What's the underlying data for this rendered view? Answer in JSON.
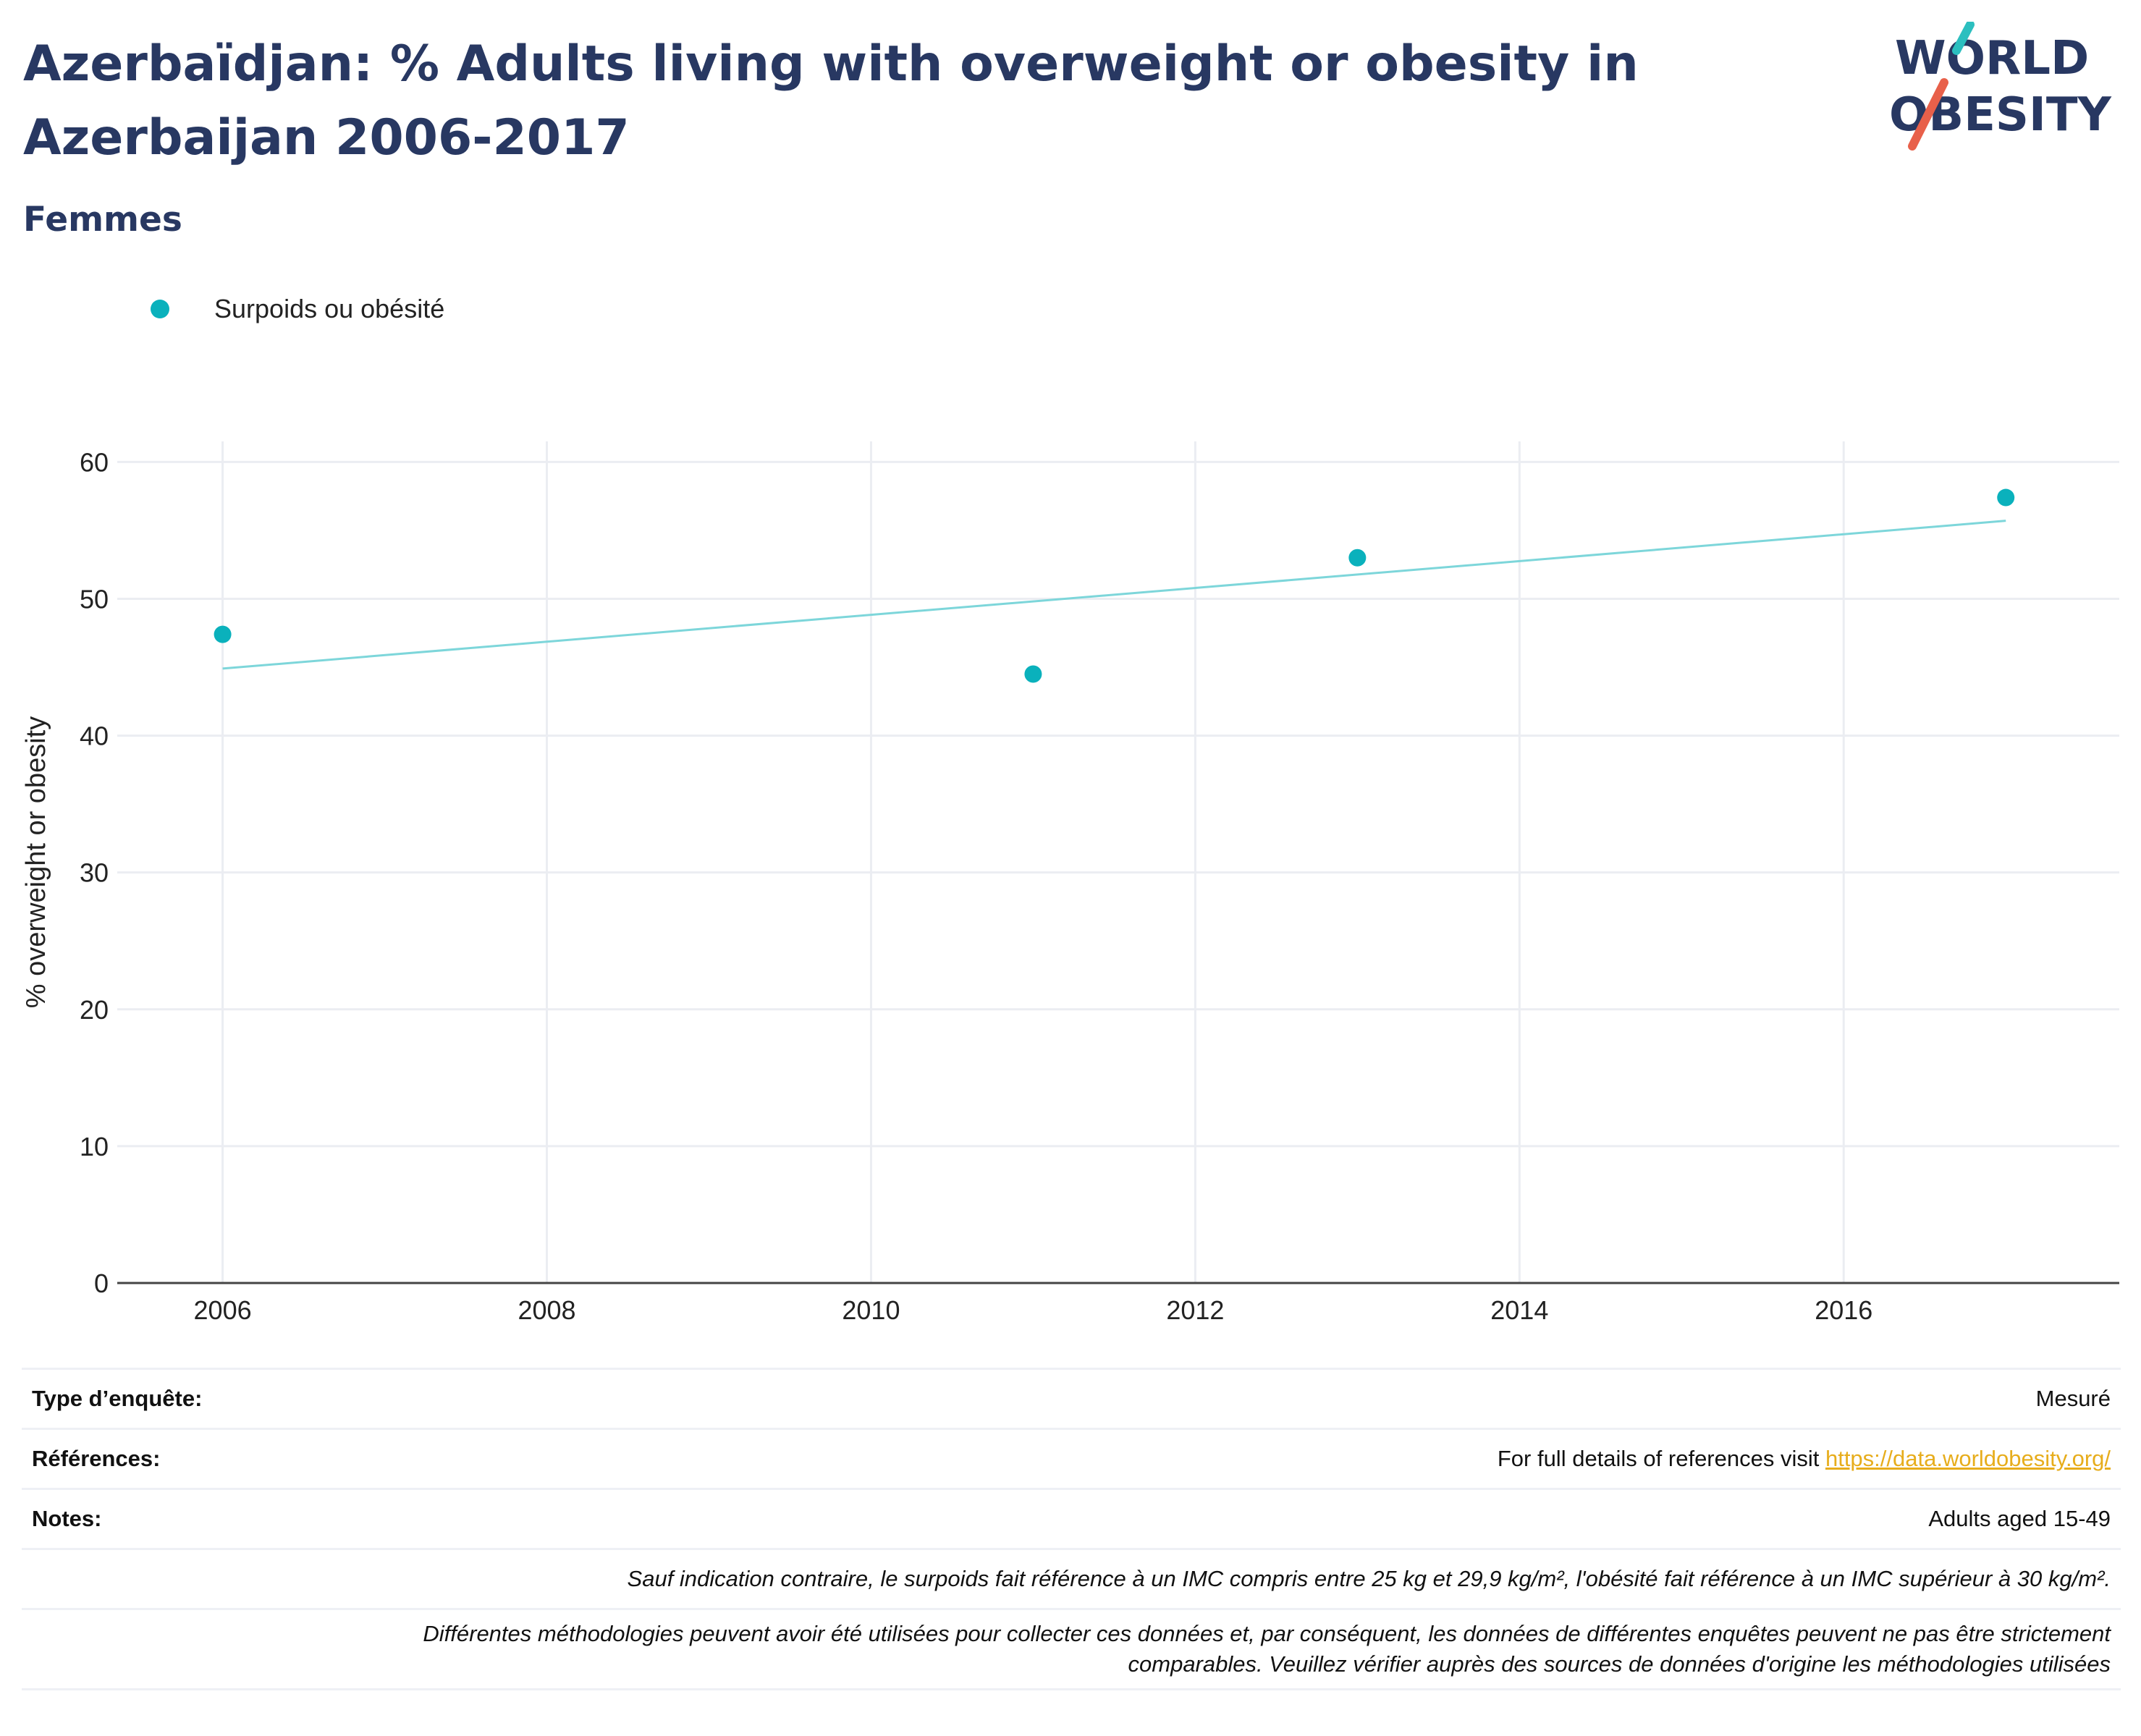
{
  "header": {
    "title": "Azerbaïdjan: % Adults living with overweight or obesity in Azerbaijan 2006-2017",
    "subtitle": "Femmes"
  },
  "logo": {
    "line1": "WORLD",
    "line2": "OBESITY",
    "accent_teal": "#2cbfbf",
    "accent_red": "#e8604a",
    "text_color": "#283862"
  },
  "legend": {
    "label": "Surpoids ou obésité",
    "color": "#0ab1bc"
  },
  "chart_data": {
    "type": "scatter",
    "title": "",
    "xlabel": "",
    "ylabel": "% overweight or obesity",
    "x": [
      2006,
      2011,
      2013,
      2017
    ],
    "series": [
      {
        "name": "Surpoids ou obésité",
        "values": [
          47.4,
          44.5,
          53.0,
          57.4
        ],
        "color": "#0ab1bc"
      }
    ],
    "trendline": {
      "x": [
        2006,
        2017
      ],
      "y": [
        44.9,
        55.7
      ],
      "color": "#7dd6da"
    },
    "xlim": [
      2005.35,
      2017.7
    ],
    "ylim": [
      0,
      61.5
    ],
    "xticks": [
      2006,
      2008,
      2010,
      2012,
      2014,
      2016
    ],
    "yticks": [
      0,
      10,
      20,
      30,
      40,
      50,
      60
    ],
    "grid": true,
    "legend_position": "top-left"
  },
  "info": {
    "rows": [
      {
        "label": "Type d’enquête:",
        "value": "Mesuré"
      },
      {
        "label": "Références:",
        "value": "For full details of references visit ",
        "link": "https://data.worldobesity.org/"
      },
      {
        "label": "Notes:",
        "value": "Adults aged 15-49"
      }
    ],
    "note1": "Sauf indication contraire, le surpoids fait référence à un IMC compris entre 25 kg et 29,9 kg/m², l'obésité fait référence à un IMC supérieur à 30 kg/m².",
    "note2_line1": "Différentes méthodologies peuvent avoir été utilisées pour collecter ces données et, par conséquent, les données de différentes enquêtes peuvent ne pas être strictement",
    "note2_line2": "comparables. Veuillez vérifier auprès des sources de données d'origine les méthodologies utilisées"
  }
}
